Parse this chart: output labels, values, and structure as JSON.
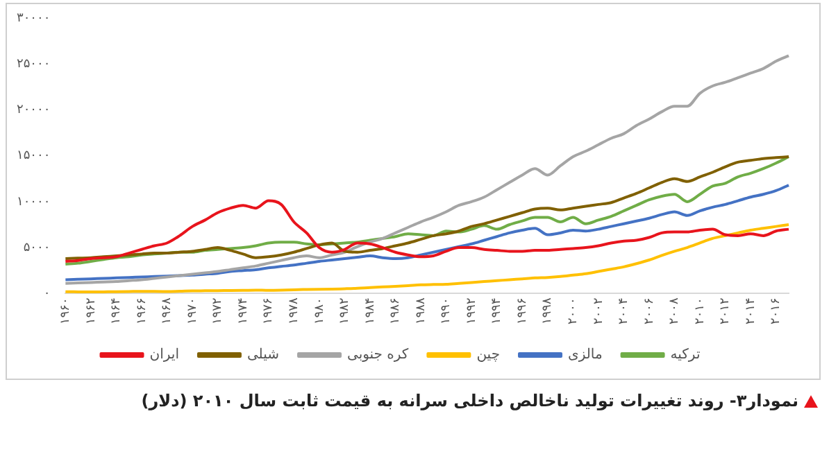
{
  "chart_data": {
    "type": "line",
    "title": "نمودار۳- روند تغییرات تولید ناخالص داخلی سرانه به قیمت ثابت سال ۲۰۱۰ (دلار)",
    "categories": [
      "۱۹۶۰",
      null,
      "۱۹۶۲",
      null,
      "۱۹۶۴",
      null,
      "۱۹۶۶",
      null,
      "۱۹۶۸",
      null,
      "۱۹۷۰",
      null,
      "۱۹۷۲",
      null,
      "۱۹۷۴",
      null,
      "۱۹۷۶",
      null,
      "۱۹۷۸",
      null,
      "۱۹۸۰",
      null,
      "۱۹۸۲",
      null,
      "۱۹۸۴",
      null,
      "۱۹۸۶",
      null,
      "۱۹۸۸",
      null,
      "۱۹۹۰",
      null,
      "۱۹۹۲",
      null,
      "۱۹۹۴",
      null,
      "۱۹۹۶",
      null,
      "۱۹۹۸",
      null,
      "۲۰۰۰",
      null,
      "۲۰۰۲",
      null,
      "۲۰۰۴",
      null,
      "۲۰۰۶",
      null,
      "۲۰۰۸",
      null,
      "۲۰۱۰",
      null,
      "۲۰۱۲",
      null,
      "۲۰۱۴",
      null,
      "۲۰۱۶",
      null
    ],
    "series": [
      {
        "name": "ایران",
        "color": "#e8141c",
        "values": [
          3500,
          3600,
          3800,
          3900,
          4000,
          4400,
          4800,
          5200,
          5500,
          6300,
          7300,
          8000,
          8800,
          9300,
          9600,
          9300,
          10100,
          9700,
          7800,
          6600,
          5000,
          4500,
          4800,
          5500,
          5400,
          5000,
          4500,
          4200,
          4000,
          4100,
          4600,
          5000,
          5000,
          4800,
          4700,
          4600,
          4600,
          4700,
          4700,
          4800,
          4900,
          5000,
          5200,
          5500,
          5700,
          5800,
          6100,
          6600,
          6700,
          6700,
          6900,
          7000,
          6400,
          6300,
          6500,
          6300,
          6800,
          7000
        ]
      },
      {
        "name": "شیلی",
        "color": "#806000",
        "values": [
          3800,
          3850,
          3900,
          4000,
          4100,
          4200,
          4300,
          4400,
          4400,
          4500,
          4600,
          4800,
          5000,
          4700,
          4300,
          3900,
          4000,
          4200,
          4500,
          4900,
          5300,
          5500,
          4600,
          4500,
          4700,
          4900,
          5200,
          5500,
          5900,
          6300,
          6500,
          6800,
          7300,
          7600,
          8000,
          8400,
          8800,
          9200,
          9300,
          9100,
          9300,
          9500,
          9700,
          9900,
          10400,
          10900,
          11500,
          12100,
          12500,
          12200,
          12700,
          13200,
          13800,
          14300,
          14500,
          14700,
          14800,
          14900
        ]
      },
      {
        "name": "کره جنوبی",
        "color": "#a5a5a5",
        "values": [
          1100,
          1150,
          1200,
          1250,
          1300,
          1400,
          1500,
          1650,
          1800,
          1950,
          2100,
          2250,
          2400,
          2600,
          2800,
          3000,
          3300,
          3600,
          3900,
          4100,
          3900,
          4200,
          4500,
          5100,
          5600,
          6000,
          6600,
          7200,
          7800,
          8300,
          8900,
          9600,
          10000,
          10500,
          11300,
          12100,
          12900,
          13600,
          12900,
          13900,
          14900,
          15500,
          16200,
          16900,
          17400,
          18300,
          19000,
          19800,
          20400,
          20400,
          21800,
          22600,
          23000,
          23500,
          24000,
          24500,
          25300,
          25900
        ]
      },
      {
        "name": "چین",
        "color": "#ffc000",
        "values": [
          200,
          180,
          170,
          180,
          200,
          220,
          240,
          230,
          220,
          250,
          290,
          300,
          310,
          330,
          340,
          360,
          350,
          370,
          410,
          440,
          460,
          480,
          520,
          570,
          650,
          720,
          780,
          860,
          950,
          980,
          1000,
          1100,
          1200,
          1300,
          1400,
          1500,
          1600,
          1700,
          1750,
          1850,
          2000,
          2150,
          2400,
          2650,
          2900,
          3250,
          3650,
          4150,
          4600,
          5000,
          5500,
          6000,
          6300,
          6600,
          6900,
          7100,
          7300,
          7500
        ]
      },
      {
        "name": "مالزی",
        "color": "#4472c4",
        "values": [
          1500,
          1550,
          1600,
          1650,
          1700,
          1750,
          1800,
          1850,
          1900,
          1950,
          2000,
          2100,
          2200,
          2400,
          2500,
          2600,
          2800,
          2950,
          3100,
          3300,
          3500,
          3650,
          3800,
          3950,
          4100,
          3900,
          3800,
          3900,
          4200,
          4500,
          4800,
          5100,
          5400,
          5800,
          6200,
          6600,
          6900,
          7100,
          6400,
          6600,
          6900,
          6800,
          7000,
          7300,
          7600,
          7900,
          8200,
          8600,
          8900,
          8500,
          9000,
          9400,
          9700,
          10100,
          10500,
          10800,
          11200,
          11800
        ]
      },
      {
        "name": "ترکیه",
        "color": "#70ad47",
        "values": [
          3200,
          3300,
          3500,
          3700,
          3900,
          4000,
          4200,
          4300,
          4400,
          4500,
          4500,
          4700,
          4800,
          4900,
          5000,
          5200,
          5500,
          5600,
          5600,
          5400,
          5300,
          5400,
          5500,
          5600,
          5800,
          6000,
          6200,
          6500,
          6400,
          6300,
          6800,
          6700,
          7000,
          7400,
          7000,
          7500,
          7900,
          8300,
          8300,
          7800,
          8300,
          7600,
          8000,
          8400,
          9000,
          9600,
          10200,
          10600,
          10800,
          10000,
          10800,
          11700,
          12000,
          12700,
          13100,
          13600,
          14200,
          14900
        ]
      }
    ],
    "ylim": [
      0,
      30000
    ],
    "yticks": [
      {
        "value": 0,
        "label": "۰"
      },
      {
        "value": 5000,
        "label": "۵۰۰۰"
      },
      {
        "value": 10000,
        "label": "۱۰۰۰۰"
      },
      {
        "value": 15000,
        "label": "۱۵۰۰۰"
      },
      {
        "value": 20000,
        "label": "۲۰۰۰۰"
      },
      {
        "value": 25000,
        "label": "۲۵۰۰۰"
      },
      {
        "value": 30000,
        "label": "۳۰۰۰۰"
      }
    ],
    "legend": "bottom",
    "marker": "none",
    "line_style": "solid"
  }
}
